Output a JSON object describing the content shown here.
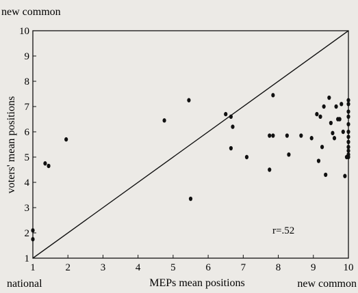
{
  "chart_data": {
    "type": "scatter",
    "top_label": "new common",
    "bottom_left_label": "national",
    "bottom_right_label": "new common",
    "xlabel": "MEPs mean positions",
    "ylabel": "voters' mean positions",
    "xlim": [
      1,
      10
    ],
    "ylim": [
      1,
      10
    ],
    "x_ticks": [
      "1",
      "2",
      "3",
      "4",
      "5",
      "6",
      "7",
      "8",
      "9",
      "10"
    ],
    "y_ticks": [
      "1",
      "2",
      "3",
      "4",
      "5",
      "6",
      "7",
      "8",
      "9",
      "10"
    ],
    "annotation": "r=.52",
    "reference_line": [
      [
        1,
        1
      ],
      [
        10,
        10
      ]
    ],
    "points": [
      [
        1.0,
        2.1
      ],
      [
        1.0,
        1.75
      ],
      [
        1.35,
        4.75
      ],
      [
        1.45,
        4.65
      ],
      [
        1.95,
        5.7
      ],
      [
        4.75,
        6.45
      ],
      [
        5.45,
        7.25
      ],
      [
        5.5,
        3.35
      ],
      [
        6.5,
        6.7
      ],
      [
        6.65,
        6.6
      ],
      [
        6.65,
        5.35
      ],
      [
        6.7,
        6.2
      ],
      [
        7.1,
        5.0
      ],
      [
        7.75,
        5.85
      ],
      [
        7.75,
        4.5
      ],
      [
        7.85,
        7.45
      ],
      [
        7.85,
        5.85
      ],
      [
        8.25,
        5.85
      ],
      [
        8.3,
        5.1
      ],
      [
        8.65,
        5.85
      ],
      [
        8.95,
        5.75
      ],
      [
        9.1,
        6.7
      ],
      [
        9.15,
        4.85
      ],
      [
        9.2,
        6.6
      ],
      [
        9.25,
        5.4
      ],
      [
        9.3,
        7.0
      ],
      [
        9.35,
        4.3
      ],
      [
        9.45,
        7.35
      ],
      [
        9.5,
        6.35
      ],
      [
        9.55,
        5.95
      ],
      [
        9.6,
        5.75
      ],
      [
        9.65,
        7.0
      ],
      [
        9.7,
        6.5
      ],
      [
        9.75,
        6.5
      ],
      [
        9.8,
        7.1
      ],
      [
        9.85,
        6.0
      ],
      [
        9.9,
        4.25
      ],
      [
        9.95,
        5.0
      ],
      [
        10.0,
        7.25
      ],
      [
        10.0,
        7.1
      ],
      [
        10.0,
        6.8
      ],
      [
        10.0,
        6.6
      ],
      [
        10.0,
        6.3
      ],
      [
        10.0,
        6.0
      ],
      [
        10.0,
        5.8
      ],
      [
        10.0,
        5.6
      ],
      [
        10.0,
        5.4
      ],
      [
        10.0,
        5.25
      ],
      [
        10.0,
        5.1
      ],
      [
        10.0,
        5.0
      ]
    ]
  }
}
